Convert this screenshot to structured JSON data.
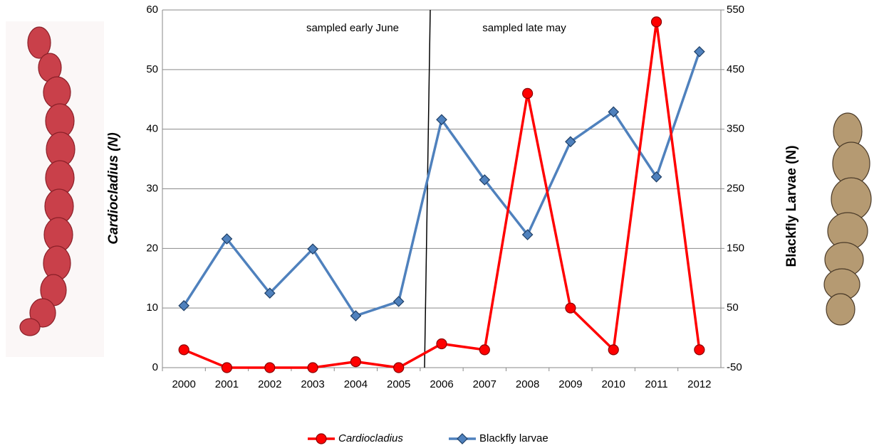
{
  "chart_data": {
    "type": "line",
    "categories": [
      "2000",
      "2001",
      "2002",
      "2003",
      "2004",
      "2005",
      "2006",
      "2007",
      "2008",
      "2009",
      "2010",
      "2011",
      "2012"
    ],
    "ylabel": "Cardiocladius  (N)",
    "y2label": "Blackfly Larvae  (N)",
    "annotations": [
      "sampled early June",
      "sampled late may"
    ],
    "ylim": [
      0,
      60
    ],
    "yticks": [
      0,
      10,
      20,
      30,
      40,
      50,
      60
    ],
    "y2lim": [
      -50,
      550
    ],
    "y2ticks": [
      -50,
      50,
      150,
      250,
      350,
      450,
      550
    ],
    "grid": true,
    "legend": "bottom",
    "series": [
      {
        "name": "Cardiocladius",
        "color": "#ff0000",
        "marker": "circle",
        "values": [
          3,
          0,
          0,
          0,
          1,
          0,
          4,
          3,
          46,
          10,
          3,
          58,
          3
        ]
      },
      {
        "name": "Blackfly larvae",
        "color": "#4f81bd",
        "marker": "diamond",
        "axis": "y2",
        "values": [
          54,
          166,
          75,
          149,
          37,
          61,
          366,
          265,
          173,
          329,
          379,
          270,
          480
        ]
      }
    ]
  }
}
